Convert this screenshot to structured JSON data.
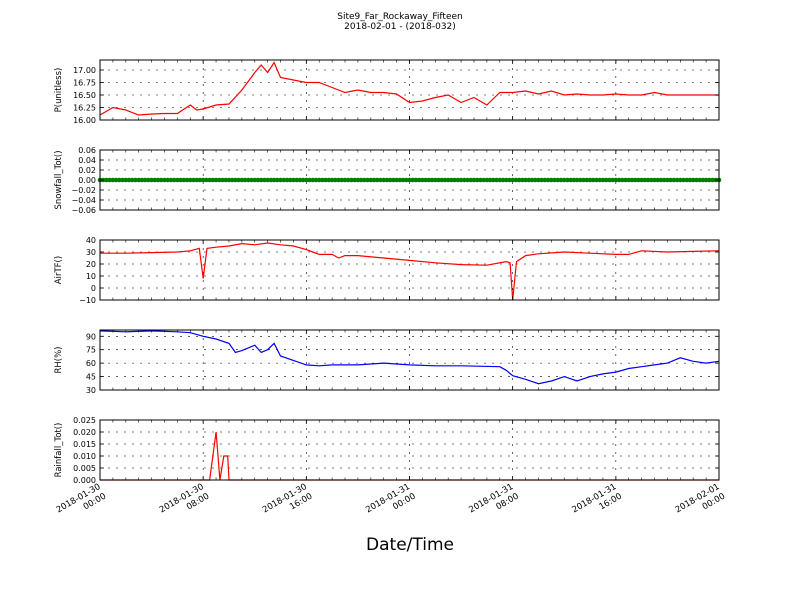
{
  "figure": {
    "title_line1": "Site9_Far_Rockaway_Fifteen",
    "title_line2": "2018-02-01 - (2018-032)",
    "xlabel": "Date/Time"
  },
  "chart_data": [
    {
      "type": "line",
      "ylabel": "P(unitless)",
      "color": "#ff0000",
      "ylim": [
        16.0,
        17.2
      ],
      "yticks": [
        16.0,
        16.25,
        16.5,
        16.75,
        17.0
      ],
      "ytick_labels": [
        "16.00",
        "16.25",
        "16.50",
        "16.75",
        "17.00"
      ],
      "xlim": [
        0,
        48
      ],
      "x": [
        0,
        1,
        2,
        3,
        4,
        5,
        6,
        7,
        7.5,
        8,
        9,
        10,
        11,
        12,
        12.5,
        13,
        13.5,
        14,
        15,
        16,
        17,
        18,
        19,
        20,
        21,
        22,
        23,
        24,
        25,
        26,
        27,
        28,
        29,
        30,
        31,
        32,
        33,
        34,
        35,
        36,
        37,
        38,
        39,
        40,
        41,
        42,
        43,
        44,
        45,
        46,
        47,
        48
      ],
      "values": [
        16.1,
        16.25,
        16.2,
        16.1,
        16.12,
        16.13,
        16.13,
        16.3,
        16.2,
        16.22,
        16.3,
        16.32,
        16.6,
        16.95,
        17.1,
        16.95,
        17.15,
        16.85,
        16.8,
        16.75,
        16.75,
        16.65,
        16.55,
        16.6,
        16.55,
        16.55,
        16.52,
        16.35,
        16.38,
        16.45,
        16.5,
        16.35,
        16.45,
        16.3,
        16.55,
        16.55,
        16.58,
        16.52,
        16.58,
        16.5,
        16.52,
        16.5,
        16.5,
        16.52,
        16.5,
        16.5,
        16.55,
        16.5,
        16.5,
        16.5,
        16.5,
        16.5
      ]
    },
    {
      "type": "scatter",
      "ylabel": "Snowfall_Tot()",
      "color": "#008000",
      "ylim": [
        -0.06,
        0.06
      ],
      "yticks": [
        -0.06,
        -0.04,
        -0.02,
        0.0,
        0.02,
        0.04,
        0.06
      ],
      "ytick_labels": [
        "−0.06",
        "−0.04",
        "−0.02",
        "0.00",
        "0.02",
        "0.04",
        "0.06"
      ],
      "xlim": [
        0,
        48
      ],
      "x": [
        0,
        48
      ],
      "values": [
        0.0,
        0.0
      ]
    },
    {
      "type": "line",
      "ylabel": "AirTF()",
      "color": "#ff0000",
      "ylim": [
        -10,
        40
      ],
      "yticks": [
        -10,
        0,
        10,
        20,
        30,
        40
      ],
      "ytick_labels": [
        "−10",
        "0",
        "10",
        "20",
        "30",
        "40"
      ],
      "xlim": [
        0,
        48
      ],
      "x": [
        0,
        2,
        4,
        6,
        7,
        7.7,
        8,
        8.3,
        9,
        10,
        11,
        12,
        13,
        14,
        15,
        16,
        16.5,
        17,
        18,
        18.5,
        19,
        20,
        22,
        24,
        26,
        28,
        30,
        31.5,
        31.8,
        32,
        32.3,
        33,
        34,
        36,
        38,
        40,
        41,
        42,
        44,
        46,
        48
      ],
      "values": [
        29,
        29,
        29.5,
        30,
        31,
        33,
        8,
        33,
        34,
        35,
        37,
        36,
        37.5,
        36,
        35,
        32,
        30,
        28,
        28,
        25,
        27,
        27,
        25,
        23,
        21,
        19.5,
        19,
        22,
        21,
        -10,
        22,
        27,
        28.5,
        30,
        29,
        28,
        28,
        31,
        30,
        30.5,
        31
      ]
    },
    {
      "type": "line",
      "ylabel": "RH(%)",
      "color": "#0000ff",
      "ylim": [
        30,
        97
      ],
      "yticks": [
        30,
        45,
        60,
        75,
        90
      ],
      "ytick_labels": [
        "30",
        "45",
        "60",
        "75",
        "90"
      ],
      "xlim": [
        0,
        48
      ],
      "x": [
        0,
        2,
        4,
        6,
        7,
        8,
        9,
        10,
        10.5,
        11,
        12,
        12.5,
        13,
        13.5,
        14,
        15,
        16,
        17,
        18,
        20,
        22,
        24,
        26,
        28,
        31,
        31.5,
        32,
        33,
        34,
        35,
        36,
        37,
        38,
        39,
        40,
        41,
        42,
        43,
        44,
        45,
        46,
        47,
        48
      ],
      "values": [
        96,
        95,
        96,
        95,
        94,
        90,
        87,
        82,
        72,
        74,
        80,
        72,
        75,
        82,
        68,
        63,
        58,
        57,
        58,
        58,
        60,
        58,
        57,
        57,
        56,
        52,
        46,
        42,
        37,
        40,
        45,
        40,
        45,
        48,
        50,
        54,
        56,
        58,
        60,
        66,
        62,
        60,
        62
      ]
    },
    {
      "type": "line",
      "ylabel": "Rainfall_Tot()",
      "color": "#ff0000",
      "ylim": [
        0.0,
        0.025
      ],
      "yticks": [
        0.0,
        0.005,
        0.01,
        0.015,
        0.02,
        0.025
      ],
      "ytick_labels": [
        "0.000",
        "0.005",
        "0.010",
        "0.015",
        "0.020",
        "0.025"
      ],
      "xlim": [
        0,
        48
      ],
      "x": [
        0,
        8.5,
        9.0,
        9.3,
        9.6,
        9.9,
        10.0,
        48
      ],
      "values": [
        0,
        0,
        0.02,
        0,
        0.01,
        0.01,
        0,
        0
      ]
    }
  ],
  "xaxis": {
    "ticks": [
      0,
      8,
      16,
      24,
      32,
      40,
      48
    ],
    "tick_labels": [
      [
        "2018-01-30",
        "00:00"
      ],
      [
        "2018-01-30",
        "08:00"
      ],
      [
        "2018-01-30",
        "16:00"
      ],
      [
        "2018-01-31",
        "00:00"
      ],
      [
        "2018-01-31",
        "08:00"
      ],
      [
        "2018-01-31",
        "16:00"
      ],
      [
        "2018-02-01",
        "00:00"
      ]
    ]
  }
}
